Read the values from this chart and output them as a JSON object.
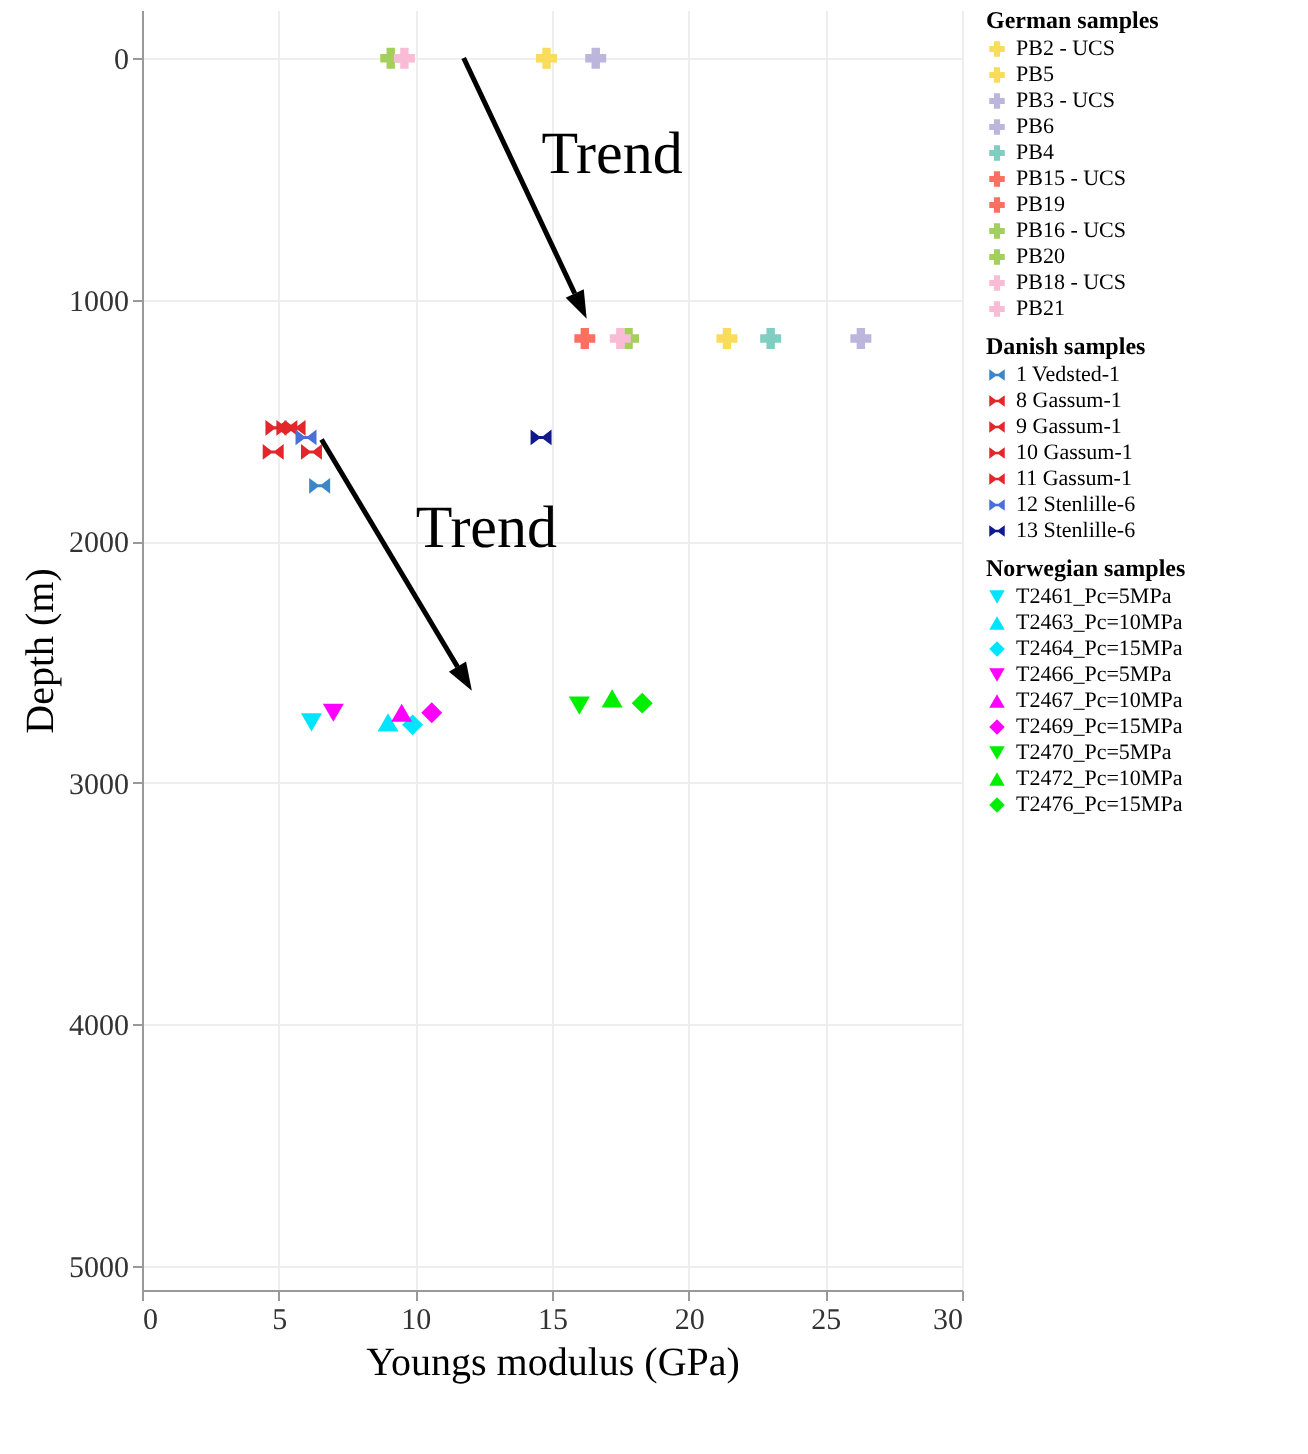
{
  "chart_data": {
    "type": "scatter",
    "xlabel": "Youngs modulus (GPa)",
    "ylabel": "Depth (m)",
    "xlim": [
      0,
      30
    ],
    "xticks": [
      0,
      5,
      10,
      15,
      20,
      25,
      30
    ],
    "ylim": [
      5100,
      -200
    ],
    "yticks": [
      0,
      1000,
      2000,
      3000,
      4000,
      5000
    ],
    "grid": true,
    "legend": "right",
    "legend_title": [
      "German samples",
      "Danish samples",
      "Norwegian samples"
    ],
    "annotations": [
      "Trend",
      "Trend"
    ],
    "series": [
      {
        "name": "PB2 - UCS",
        "marker": "cross",
        "color": "#f9dc5c",
        "x": [
          14.8
        ],
        "values": [
          0
        ]
      },
      {
        "name": "PB5",
        "marker": "cross",
        "color": "#f9dc5c",
        "x": [
          21.4
        ],
        "values": [
          1160
        ]
      },
      {
        "name": "PB3 - UCS",
        "marker": "cross",
        "color": "#bcb5dc",
        "x": [
          16.6
        ],
        "values": [
          0
        ]
      },
      {
        "name": "PB6",
        "marker": "cross",
        "color": "#bcb5dc",
        "x": [
          26.3
        ],
        "values": [
          1160
        ]
      },
      {
        "name": "PB4",
        "marker": "cross",
        "color": "#80cdc1",
        "x": [
          23.0
        ],
        "values": [
          1160
        ]
      },
      {
        "name": "PB15 - UCS",
        "marker": "cross",
        "color": "#fb7060",
        "x": [
          16.2
        ],
        "values": [
          1160
        ]
      },
      {
        "name": "PB19",
        "marker": "cross",
        "color": "#fb7060",
        "x": [
          null
        ],
        "values": [
          null
        ]
      },
      {
        "name": "PB16 - UCS",
        "marker": "cross",
        "color": "#a3d05c",
        "x": [
          9.1
        ],
        "values": [
          0
        ]
      },
      {
        "name": "PB20",
        "marker": "cross",
        "color": "#a3d05c",
        "x": [
          17.8
        ],
        "values": [
          1160
        ]
      },
      {
        "name": "PB18 - UCS",
        "marker": "cross",
        "color": "#f8bcd6",
        "x": [
          9.6
        ],
        "values": [
          0
        ]
      },
      {
        "name": "PB21",
        "marker": "cross",
        "color": "#f8bcd6",
        "x": [
          17.5
        ],
        "values": [
          1160
        ]
      },
      {
        "name": "1 Vedsted-1",
        "color": "#3a86c8",
        "x": [
          6.5
        ],
        "values": [
          1770
        ]
      },
      {
        "name": "8 Gassum-1",
        "color": "#e3262a",
        "x": [
          4.8
        ],
        "values": [
          1630
        ]
      },
      {
        "name": "9 Gassum-1",
        "color": "#e3262a",
        "x": [
          6.2
        ],
        "values": [
          1630
        ]
      },
      {
        "name": "10 Gassum-1",
        "color": "#e3262a",
        "x": [
          4.9,
          5.3
        ],
        "values": [
          1530,
          1530
        ]
      },
      {
        "name": "11 Gassum-1",
        "color": "#e3262a",
        "x": [
          5.6
        ],
        "values": [
          1530
        ]
      },
      {
        "name": "12 Stenlille-6",
        "color": "#4a6fd8",
        "x": [
          6.0
        ],
        "values": [
          1570
        ]
      },
      {
        "name": "13 Stenlille-6",
        "color": "#101a8c",
        "x": [
          14.6
        ],
        "values": [
          1570
        ]
      },
      {
        "name": "T2461_Pc=5MPa",
        "marker": "triangle-down",
        "color": "#00e5ff",
        "x": [
          6.2
        ],
        "values": [
          2750
        ]
      },
      {
        "name": "T2463_Pc=10MPa",
        "marker": "triangle",
        "color": "#00e5ff",
        "x": [
          9.0
        ],
        "values": [
          2750
        ]
      },
      {
        "name": "T2464_Pc=15MPa",
        "marker": "diamond",
        "color": "#00e5ff",
        "x": [
          9.9
        ],
        "values": [
          2760
        ]
      },
      {
        "name": "T2466_Pc=5MPa",
        "marker": "triangle-down",
        "color": "#ff00ff",
        "x": [
          7.0
        ],
        "values": [
          2710
        ]
      },
      {
        "name": "T2467_Pc=10MPa",
        "marker": "triangle",
        "color": "#ff00ff",
        "x": [
          9.5
        ],
        "values": [
          2710
        ]
      },
      {
        "name": "T2469_Pc=15MPa",
        "marker": "diamond",
        "color": "#ff00ff",
        "x": [
          10.6
        ],
        "values": [
          2710
        ]
      },
      {
        "name": "T2470_Pc=5MPa",
        "marker": "triangle-down",
        "color": "#00ee00",
        "x": [
          16.0
        ],
        "values": [
          2680
        ]
      },
      {
        "name": "T2472_Pc=10MPa",
        "marker": "triangle",
        "color": "#00ee00",
        "x": [
          17.2
        ],
        "values": [
          2650
        ]
      },
      {
        "name": "T2476_Pc=15MPa",
        "marker": "diamond",
        "color": "#00ee00",
        "x": [
          18.3
        ],
        "values": [
          2670
        ]
      }
    ]
  }
}
